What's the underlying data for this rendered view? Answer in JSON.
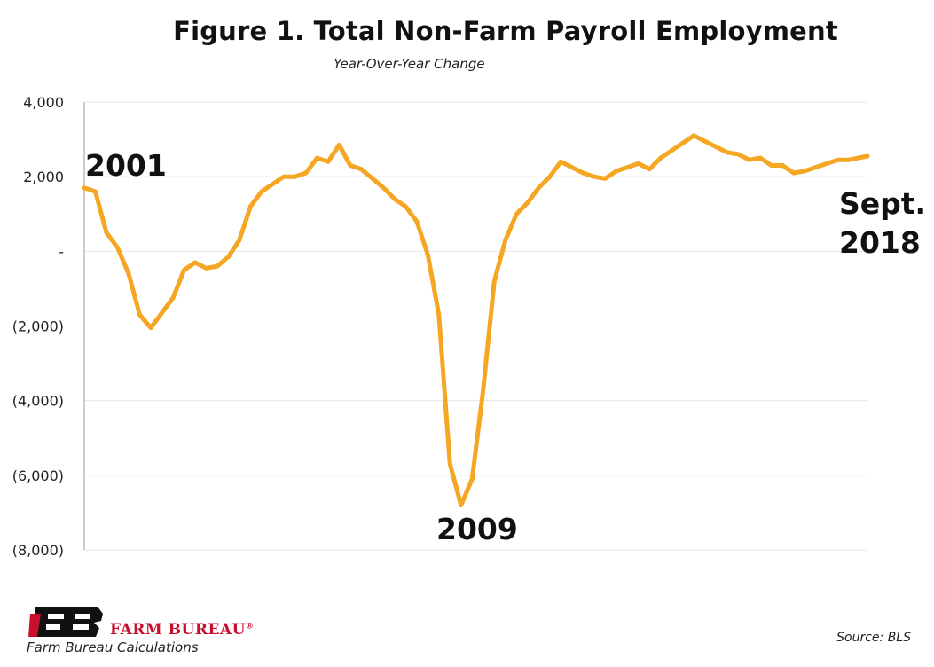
{
  "chart_data": {
    "type": "line",
    "title": "Figure 1. Total Non-Farm Payroll Employment",
    "subtitle": "Year-Over-Year Change",
    "xlabel": "",
    "ylabel": "",
    "ylim": [
      -8000,
      4000
    ],
    "yticks": [
      {
        "value": 4000,
        "label": "4,000"
      },
      {
        "value": 2000,
        "label": "2,000"
      },
      {
        "value": 0,
        "label": "-"
      },
      {
        "value": -2000,
        "label": "(2,000)"
      },
      {
        "value": -4000,
        "label": "(4,000)"
      },
      {
        "value": -6000,
        "label": "(6,000)"
      },
      {
        "value": -8000,
        "label": "(8,000)"
      }
    ],
    "grid": true,
    "series": [
      {
        "color": "#f5a623",
        "x": [
          "2001-01",
          "2001-04",
          "2001-07",
          "2001-10",
          "2002-01",
          "2002-04",
          "2002-07",
          "2002-10",
          "2003-01",
          "2003-04",
          "2003-07",
          "2003-10",
          "2004-01",
          "2004-04",
          "2004-07",
          "2004-10",
          "2005-01",
          "2005-04",
          "2005-07",
          "2005-10",
          "2006-01",
          "2006-04",
          "2006-07",
          "2006-10",
          "2007-01",
          "2007-04",
          "2007-07",
          "2007-10",
          "2008-01",
          "2008-04",
          "2008-07",
          "2008-10",
          "2009-01",
          "2009-04",
          "2009-07",
          "2009-10",
          "2010-01",
          "2010-04",
          "2010-07",
          "2010-10",
          "2011-01",
          "2011-04",
          "2011-07",
          "2011-10",
          "2012-01",
          "2012-04",
          "2012-07",
          "2012-10",
          "2013-01",
          "2013-04",
          "2013-07",
          "2013-10",
          "2014-01",
          "2014-04",
          "2014-07",
          "2014-10",
          "2015-01",
          "2015-04",
          "2015-07",
          "2015-10",
          "2016-01",
          "2016-04",
          "2016-07",
          "2016-10",
          "2017-01",
          "2017-04",
          "2017-07",
          "2017-10",
          "2018-01",
          "2018-04",
          "2018-09"
        ],
        "values": [
          1700,
          1600,
          500,
          100,
          -600,
          -1700,
          -2050,
          -1650,
          -1250,
          -500,
          -300,
          -450,
          -400,
          -150,
          300,
          1200,
          1600,
          1800,
          2000,
          2000,
          2100,
          2500,
          2400,
          2850,
          2300,
          2200,
          1950,
          1700,
          1400,
          1200,
          800,
          -100,
          -1700,
          -5700,
          -6800,
          -6100,
          -3700,
          -800,
          300,
          1000,
          1300,
          1700,
          2000,
          2400,
          2250,
          2100,
          2000,
          1950,
          2150,
          2250,
          2350,
          2200,
          2500,
          2700,
          2900,
          3100,
          2950,
          2800,
          2650,
          2600,
          2450,
          2500,
          2300,
          2300,
          2100,
          2150,
          2250,
          2350,
          2450,
          2450,
          2550
        ]
      }
    ],
    "annotations": [
      {
        "text": "2001",
        "anchor": "2001"
      },
      {
        "text": "2009",
        "anchor": "2009"
      },
      {
        "text": "Sept.",
        "anchor": "end-1"
      },
      {
        "text": "2018",
        "anchor": "end-2"
      }
    ]
  },
  "footer": {
    "brand": "FARM BUREAU",
    "registered": "®",
    "credit": "Farm Bureau Calculations",
    "source": "Source: BLS"
  },
  "colors": {
    "line": "#f5a623",
    "grid": "#e6e6e6",
    "axis": "#999999",
    "brand_red": "#c8102e",
    "logo_black": "#111111"
  },
  "icons": {
    "logo": "farm-bureau-logo-icon"
  }
}
